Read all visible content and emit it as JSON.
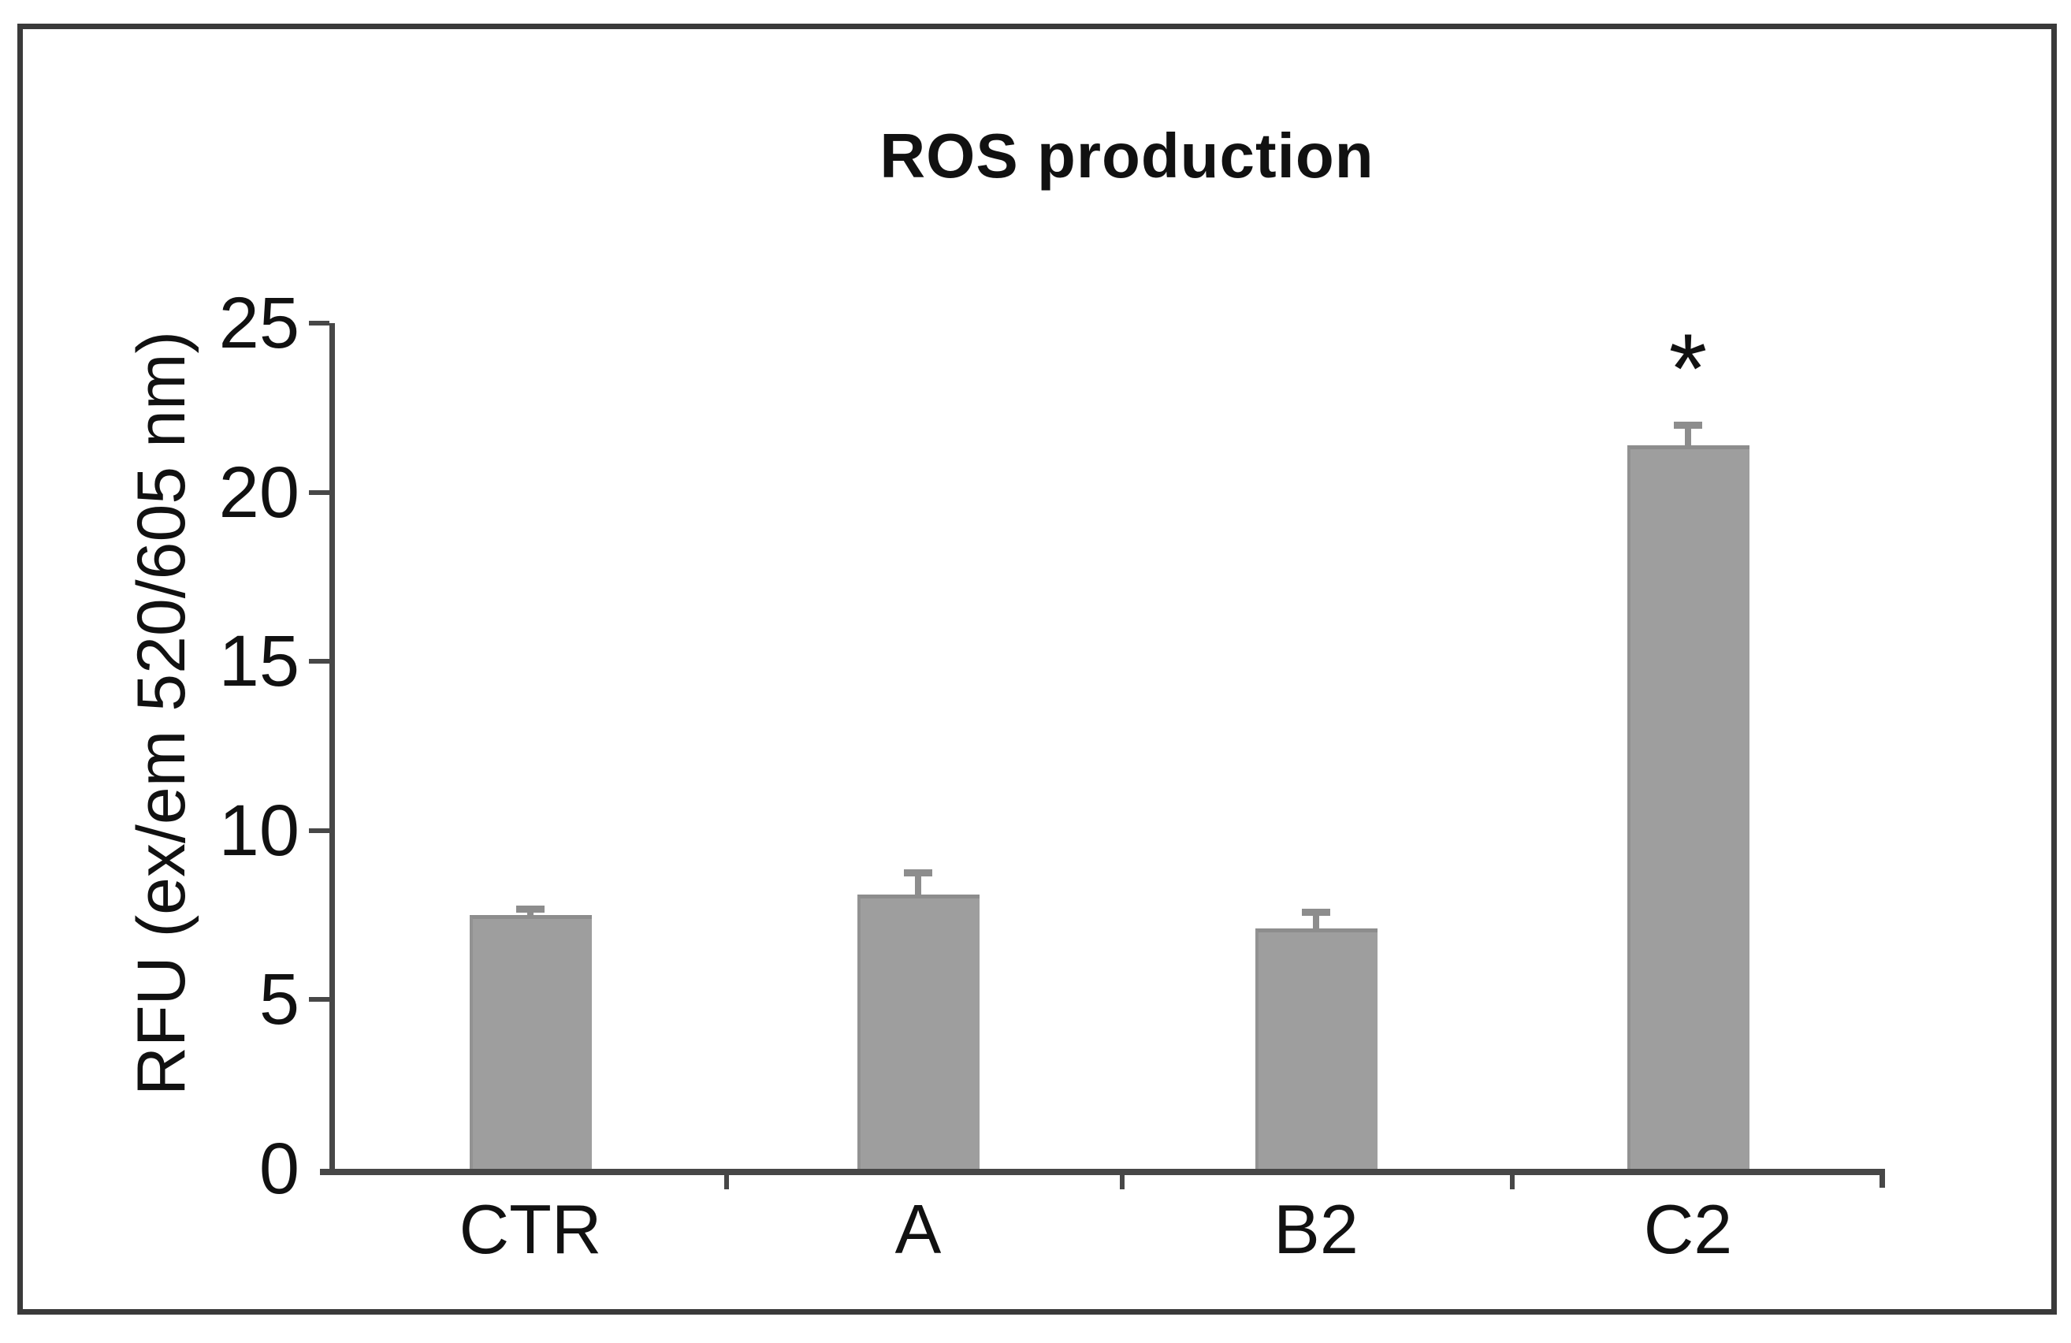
{
  "chart_data": {
    "type": "bar",
    "title": "ROS production",
    "ylabel": "RFU (ex/em 520/605 nm)",
    "xlabel": "",
    "categories": [
      "CTR",
      "A",
      "B2",
      "C2"
    ],
    "values": [
      7.5,
      8.1,
      7.1,
      21.4
    ],
    "errors": [
      0.2,
      0.65,
      0.5,
      0.6
    ],
    "significance": [
      "",
      "",
      "",
      "*"
    ],
    "yticks": [
      0,
      5,
      10,
      15,
      20,
      25
    ],
    "ylim": [
      0,
      25
    ],
    "grid": false,
    "legend_position": "none",
    "bar_color": "#9e9e9e",
    "bar_edge_color": "#8d8d8d",
    "error_bar_color": "#8d8d8d",
    "axis_color": "#474747",
    "frame_color": "#3a3a3a",
    "text_color": "#111111"
  }
}
